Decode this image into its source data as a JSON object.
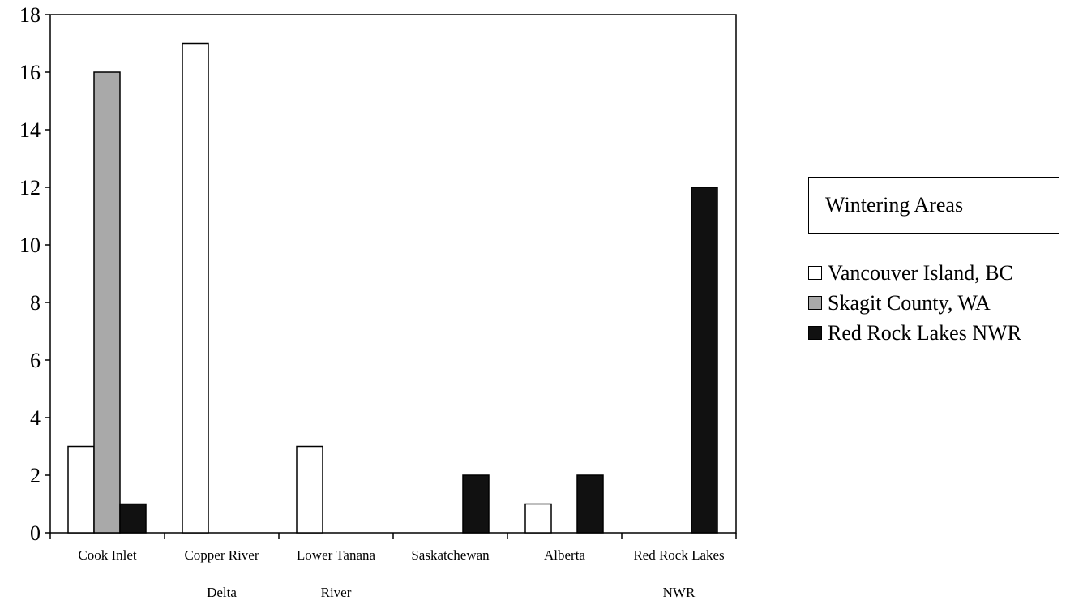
{
  "chart_data": {
    "type": "bar",
    "categories": [
      [
        "Cook Inlet",
        ""
      ],
      [
        "Copper River",
        "Delta"
      ],
      [
        "Lower Tanana",
        "River"
      ],
      [
        "Saskatchewan",
        ""
      ],
      [
        "Alberta",
        ""
      ],
      [
        "Red Rock Lakes",
        "NWR"
      ]
    ],
    "series": [
      {
        "name": "Vancouver Island, BC",
        "values": [
          3,
          17,
          3,
          0,
          1,
          0
        ],
        "color": "#ffffff"
      },
      {
        "name": "Skagit County, WA",
        "values": [
          16,
          0,
          0,
          0,
          0,
          0
        ],
        "color": "#a9a9a9"
      },
      {
        "name": "Red Rock Lakes NWR",
        "values": [
          1,
          0,
          0,
          2,
          2,
          12
        ],
        "color": "#111111"
      }
    ],
    "title": "",
    "xlabel": "",
    "ylabel": "",
    "ylim": [
      0,
      18
    ],
    "yticks": [
      0,
      2,
      4,
      6,
      8,
      10,
      12,
      14,
      16,
      18
    ],
    "grid": false,
    "legend_title": "Wintering Areas",
    "legend_position": "right"
  }
}
